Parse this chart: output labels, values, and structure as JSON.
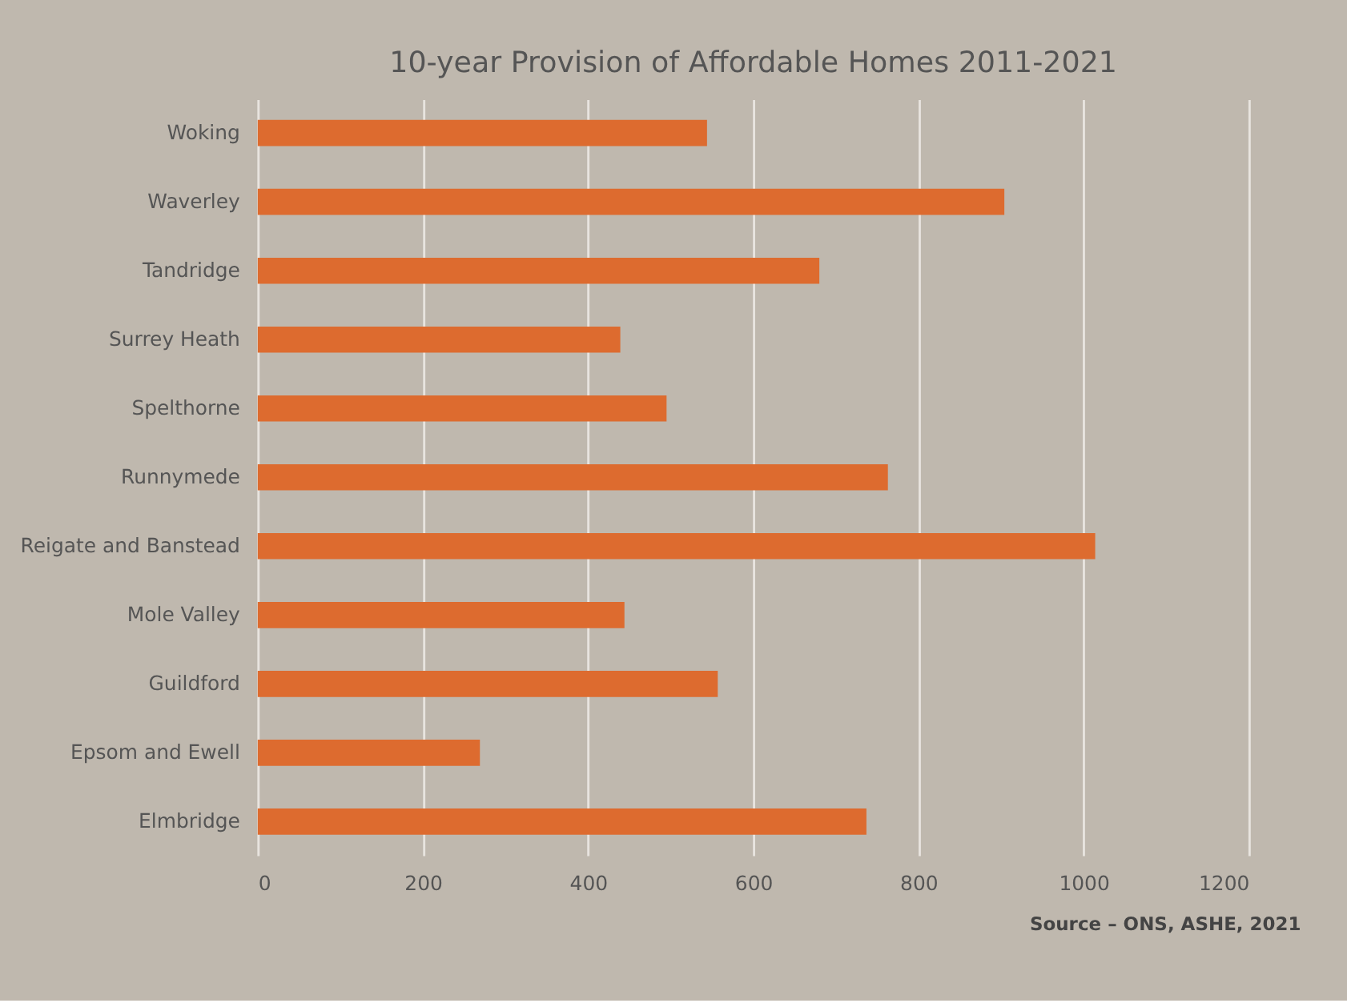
{
  "chart_data": {
    "type": "bar",
    "orientation": "horizontal",
    "title": "10-year Provision of Affordable Homes 2011-2021",
    "categories": [
      "Woking",
      "Waverley",
      "Tandridge",
      "Surrey Heath",
      "Spelthorne",
      "Runnymede",
      "Reigate and Banstead",
      "Mole Valley",
      "Guildford",
      "Epsom and Ewell",
      "Elmbridge"
    ],
    "values": [
      544,
      904,
      680,
      439,
      495,
      763,
      1014,
      444,
      557,
      269,
      737
    ],
    "color": "#dd6b2f",
    "xlim": [
      0,
      1200
    ],
    "xticks": [
      0,
      200,
      400,
      600,
      800,
      1000,
      1200
    ],
    "grid": "x",
    "annotations": [
      "Source – ONS, ASHE, 2021"
    ]
  }
}
